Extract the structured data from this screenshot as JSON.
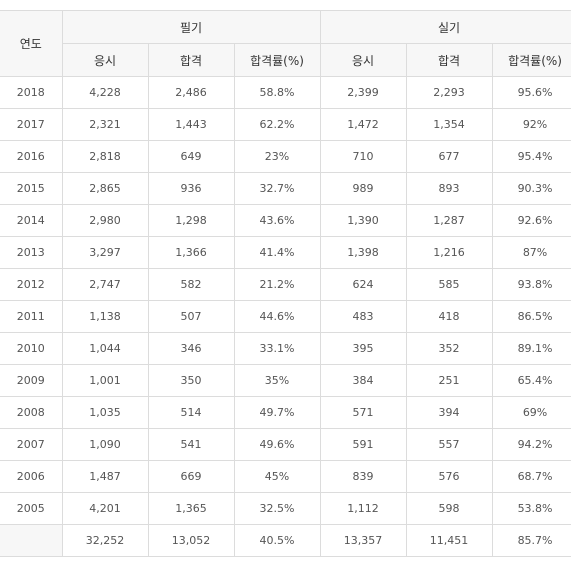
{
  "header": {
    "year": "연도",
    "written": "필기",
    "practical": "실기",
    "sub": [
      "응시",
      "합격",
      "합격률(%)",
      "응시",
      "합격",
      "합격률(%)"
    ]
  },
  "rows": [
    [
      "2018",
      "4,228",
      "2,486",
      "58.8%",
      "2,399",
      "2,293",
      "95.6%"
    ],
    [
      "2017",
      "2,321",
      "1,443",
      "62.2%",
      "1,472",
      "1,354",
      "92%"
    ],
    [
      "2016",
      "2,818",
      "649",
      "23%",
      "710",
      "677",
      "95.4%"
    ],
    [
      "2015",
      "2,865",
      "936",
      "32.7%",
      "989",
      "893",
      "90.3%"
    ],
    [
      "2014",
      "2,980",
      "1,298",
      "43.6%",
      "1,390",
      "1,287",
      "92.6%"
    ],
    [
      "2013",
      "3,297",
      "1,366",
      "41.4%",
      "1,398",
      "1,216",
      "87%"
    ],
    [
      "2012",
      "2,747",
      "582",
      "21.2%",
      "624",
      "585",
      "93.8%"
    ],
    [
      "2011",
      "1,138",
      "507",
      "44.6%",
      "483",
      "418",
      "86.5%"
    ],
    [
      "2010",
      "1,044",
      "346",
      "33.1%",
      "395",
      "352",
      "89.1%"
    ],
    [
      "2009",
      "1,001",
      "350",
      "35%",
      "384",
      "251",
      "65.4%"
    ],
    [
      "2008",
      "1,035",
      "514",
      "49.7%",
      "571",
      "394",
      "69%"
    ],
    [
      "2007",
      "1,090",
      "541",
      "49.6%",
      "591",
      "557",
      "94.2%"
    ],
    [
      "2006",
      "1,487",
      "669",
      "45%",
      "839",
      "576",
      "68.7%"
    ],
    [
      "2005",
      "4,201",
      "1,365",
      "32.5%",
      "1,112",
      "598",
      "53.8%"
    ],
    [
      "",
      "32,252",
      "13,052",
      "40.5%",
      "13,357",
      "11,451",
      "85.7%"
    ]
  ]
}
